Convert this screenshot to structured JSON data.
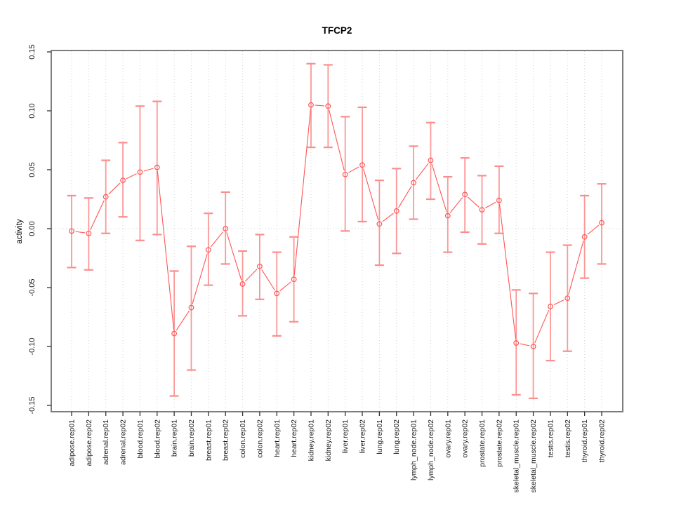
{
  "chart_data": {
    "type": "line",
    "title": "TFCP2",
    "xlabel": "",
    "ylabel": "activity",
    "ylim": [
      -0.15,
      0.15
    ],
    "yticks": [
      0.15,
      0.1,
      0.05,
      0.0,
      -0.05,
      -0.1,
      -0.15
    ],
    "ytick_labels": [
      "0.15",
      "0.10",
      "0.05",
      "0.00",
      "-0.05",
      "-0.10",
      "-0.15"
    ],
    "grid": {
      "vertical": "dotted line at every category",
      "horizontal": "dotted line at y=0 only"
    },
    "legend_position": "none",
    "marker": "open-circle",
    "categories": [
      "adipose.rep01",
      "adipose.rep02",
      "adrenal.rep01",
      "adrenal.rep02",
      "blood.rep01",
      "blood.rep02",
      "brain.rep01",
      "brain.rep02",
      "breast.rep01",
      "breast.rep02",
      "colon.rep01",
      "colon.rep02",
      "heart.rep01",
      "heart.rep02",
      "kidney.rep01",
      "kidney.rep02",
      "liver.rep01",
      "liver.rep02",
      "lung.rep01",
      "lung.rep02",
      "lymph_node.rep01",
      "lymph_node.rep02",
      "ovary.rep01",
      "ovary.rep02",
      "prostate.rep01",
      "prostate.rep02",
      "skeletal_muscle.rep01",
      "skeletal_muscle.rep02",
      "testis.rep01",
      "testis.rep02",
      "thyroid.rep01",
      "thyroid.rep02"
    ],
    "series": [
      {
        "name": "activity",
        "values": [
          -0.002,
          -0.004,
          0.027,
          0.041,
          0.048,
          0.052,
          -0.089,
          -0.067,
          -0.018,
          0.0,
          -0.047,
          -0.032,
          -0.055,
          -0.043,
          0.105,
          0.104,
          0.046,
          0.054,
          0.004,
          0.015,
          0.039,
          0.058,
          0.011,
          0.029,
          0.016,
          0.024,
          -0.097,
          -0.1,
          -0.066,
          -0.059,
          -0.007,
          0.005
        ],
        "lower": [
          -0.033,
          -0.035,
          -0.004,
          0.01,
          -0.01,
          -0.005,
          -0.142,
          -0.12,
          -0.048,
          -0.03,
          -0.074,
          -0.06,
          -0.091,
          -0.079,
          0.069,
          0.069,
          -0.002,
          0.006,
          -0.031,
          -0.021,
          0.008,
          0.025,
          -0.02,
          -0.003,
          -0.013,
          -0.004,
          -0.141,
          -0.144,
          -0.112,
          -0.104,
          -0.042,
          -0.03
        ],
        "upper": [
          0.028,
          0.026,
          0.058,
          0.073,
          0.104,
          0.108,
          -0.036,
          -0.015,
          0.013,
          0.031,
          -0.019,
          -0.005,
          -0.02,
          -0.007,
          0.14,
          0.139,
          0.095,
          0.103,
          0.041,
          0.051,
          0.07,
          0.09,
          0.044,
          0.06,
          0.045,
          0.053,
          -0.052,
          -0.055,
          -0.02,
          -0.014,
          0.028,
          0.038
        ]
      }
    ],
    "colors": {
      "point_line": "#ff5555",
      "error_bar": "#fc8d8d",
      "grid": "#d4d4d4",
      "box": "#7d7d7d",
      "tick": "#333333",
      "text": "#1a1a1a"
    }
  }
}
